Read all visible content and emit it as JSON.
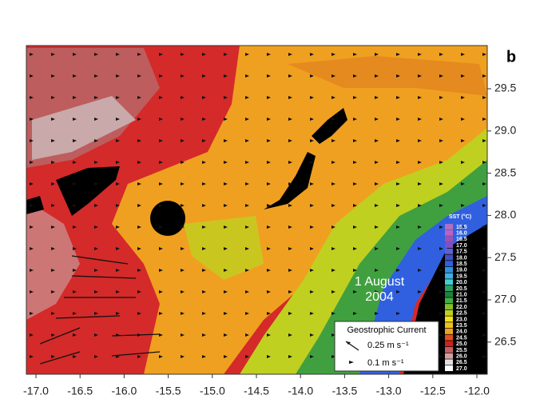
{
  "panel_label": "b",
  "lon_ticks": [
    "-17.0",
    "-16.5",
    "-16.0",
    "-15.5",
    "-15.0",
    "-14.5",
    "-14.0",
    "-13.5",
    "-13.0",
    "-12.5",
    "-12.0"
  ],
  "lat_ticks": [
    "29.5",
    "29.0",
    "28.5",
    "28.0",
    "27.5",
    "27.0",
    "26.5"
  ],
  "date_label": [
    "1 August",
    "2004"
  ],
  "colorbar": {
    "title": "SST (°C)",
    "labels": [
      "15.5",
      "16.0",
      "16.5",
      "17.0",
      "17.5",
      "18.0",
      "18.5",
      "19.0",
      "19.5",
      "20.0",
      "20.5",
      "21.0",
      "21.5",
      "22.0",
      "22.5",
      "23.0",
      "23.5",
      "24.0",
      "24.5",
      "25.0",
      "25.5",
      "26.0",
      "26.5",
      "27.0"
    ],
    "colors": [
      "#b070c0",
      "#c060c0",
      "#a050b0",
      "#8050c0",
      "#6060d0",
      "#4050c0",
      "#3060e0",
      "#3090e0",
      "#40b0e0",
      "#40d0d0",
      "#30a060",
      "#208040",
      "#40b040",
      "#80c030",
      "#c0d020",
      "#f0e020",
      "#f0c020",
      "#f0a020",
      "#e05020",
      "#d02020",
      "#c06060",
      "#d0a0a0",
      "#e0e0e0",
      "#ffffff"
    ]
  },
  "legend": {
    "title": "Geostrophic Current",
    "items": [
      "0.25 m s⁻¹",
      "0.1 m s⁻¹"
    ]
  }
}
